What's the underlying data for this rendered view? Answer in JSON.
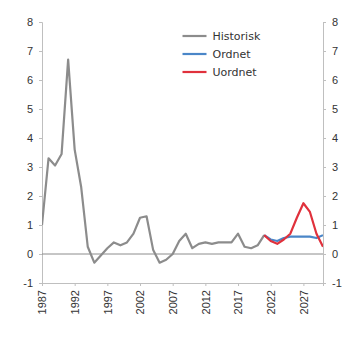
{
  "chart_data": {
    "type": "line",
    "x": [
      1987,
      1988,
      1989,
      1990,
      1991,
      1992,
      1993,
      1994,
      1995,
      1996,
      1997,
      1998,
      1999,
      2000,
      2001,
      2002,
      2003,
      2004,
      2005,
      2006,
      2007,
      2008,
      2009,
      2010,
      2011,
      2012,
      2013,
      2014,
      2015,
      2016,
      2017,
      2018,
      2019,
      2020,
      2021,
      2022,
      2023,
      2024,
      2025,
      2026,
      2027,
      2028,
      2029,
      2030
    ],
    "series": [
      {
        "name": "Historisk",
        "color": "#8c8c8c",
        "values": [
          1.0,
          3.3,
          3.05,
          3.45,
          6.7,
          3.6,
          2.3,
          0.25,
          -0.3,
          -0.05,
          0.2,
          0.4,
          0.3,
          0.4,
          0.7,
          1.25,
          1.3,
          0.15,
          -0.3,
          -0.2,
          0.0,
          0.45,
          0.7,
          0.2,
          0.35,
          0.4,
          0.35,
          0.4,
          0.4,
          0.4,
          0.7,
          0.25,
          0.2,
          0.3,
          0.65,
          null,
          null,
          null,
          null,
          null,
          null,
          null,
          null,
          null
        ]
      },
      {
        "name": "Ordnet",
        "color": "#4a86c8",
        "values": [
          null,
          null,
          null,
          null,
          null,
          null,
          null,
          null,
          null,
          null,
          null,
          null,
          null,
          null,
          null,
          null,
          null,
          null,
          null,
          null,
          null,
          null,
          null,
          null,
          null,
          null,
          null,
          null,
          null,
          null,
          null,
          null,
          null,
          null,
          0.65,
          0.5,
          0.45,
          0.55,
          0.6,
          0.6,
          0.6,
          0.6,
          0.55,
          0.65
        ]
      },
      {
        "name": "Uordnet",
        "color": "#e0313c",
        "values": [
          null,
          null,
          null,
          null,
          null,
          null,
          null,
          null,
          null,
          null,
          null,
          null,
          null,
          null,
          null,
          null,
          null,
          null,
          null,
          null,
          null,
          null,
          null,
          null,
          null,
          null,
          null,
          null,
          null,
          null,
          null,
          null,
          null,
          null,
          0.65,
          0.45,
          0.35,
          0.5,
          0.7,
          1.25,
          1.75,
          1.45,
          0.7,
          0.25
        ]
      }
    ],
    "xlim": [
      1987,
      2030
    ],
    "xticks": [
      1987,
      1992,
      1997,
      2002,
      2007,
      2012,
      2017,
      2022,
      2027
    ],
    "ylim": [
      -1,
      8
    ],
    "yticks": [
      -1,
      0,
      1,
      2,
      3,
      4,
      5,
      6,
      7,
      8
    ],
    "y2lim": [
      -1,
      8
    ],
    "y2ticks": [
      -1,
      0,
      1,
      2,
      3,
      4,
      5,
      6,
      7,
      8
    ],
    "reference_line": 0,
    "legend": "upper right",
    "grid": false
  }
}
